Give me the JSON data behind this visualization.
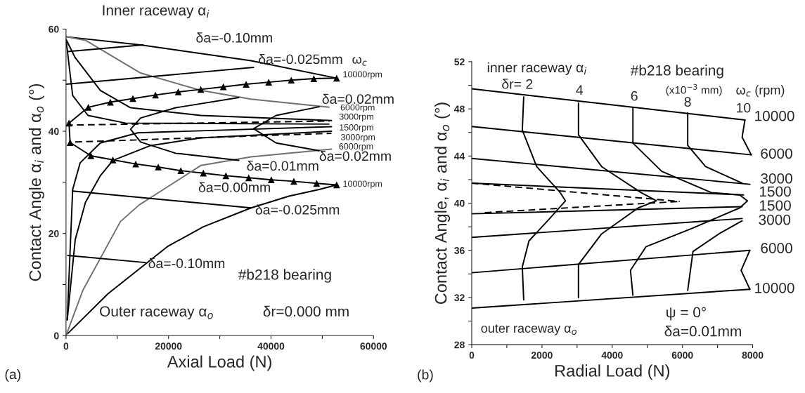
{
  "chart_data": [
    {
      "type": "line",
      "xlabel": "Axial Load (N)",
      "ylabel": "Contact Angle α$_{i}$ and α$_{o}$ (°)",
      "xlim": [
        0,
        60000
      ],
      "xticks": [
        0,
        {
          "value": 10000,
          "label": null
        },
        20000,
        {
          "value": 30000,
          "label": null
        },
        40000,
        {
          "value": 50000,
          "label": null
        },
        60000
      ],
      "ylim": [
        0,
        60
      ],
      "yticks": [
        0,
        {
          "value": 10,
          "label": null
        },
        20,
        {
          "value": 30,
          "label": null
        },
        40,
        {
          "value": 50,
          "label": null
        },
        60
      ],
      "series": [
        {
          "color": "#000000",
          "x": [
            0,
            14550,
            36100,
            52800
          ],
          "values": [
            58.5,
            56.9,
            53.8,
            50.4
          ]
        },
        {
          "color": "#707070",
          "x": [
            0,
            3800,
            14550,
            26300,
            36100,
            51300
          ],
          "values": [
            58.5,
            57.8,
            51.4,
            48.0,
            46.3,
            44.7
          ]
        },
        {
          "color": "#000000",
          "x": [
            0,
            1800,
            6700,
            12600,
            26300,
            51800
          ],
          "values": [
            58.0,
            54.4,
            48.0,
            44.6,
            43.1,
            42.1
          ]
        },
        {
          "color": "#000000",
          "x": [
            0,
            1300,
            4300,
            11600,
            51300
          ],
          "values": [
            58.0,
            47.0,
            43.1,
            41.6,
            41.4
          ]
        },
        {
          "color": "#000000",
          "marker": "triangle",
          "x": [
            52800,
            48350,
            43950,
            39550,
            35150,
            30700,
            26300,
            21900,
            17450,
            13050,
            8650,
            4350,
            580,
            800,
            4850,
            9150,
            13600,
            18000,
            22400,
            26800,
            31200,
            35650,
            40050,
            44450,
            48900,
            52800
          ],
          "values": [
            50.4,
            50.3,
            50.0,
            49.6,
            49.2,
            48.7,
            48.2,
            47.7,
            47.1,
            46.4,
            45.7,
            44.7,
            41.6,
            37.8,
            35.2,
            34.4,
            33.6,
            33.0,
            32.3,
            31.8,
            31.3,
            30.9,
            30.5,
            30.2,
            29.8,
            29.5
          ]
        },
        {
          "color": "#000000",
          "x": [
            330,
            8200,
            19900,
            26800,
            36100,
            43500,
            49400,
            52800
          ],
          "values": [
            0.4,
            8.2,
            17.5,
            21.3,
            25.0,
            27.3,
            28.6,
            29.5
          ]
        },
        {
          "color": "#707070",
          "x": [
            0,
            3300,
            10600,
            14300,
            19000,
            26300,
            36100,
            51800
          ],
          "values": [
            0,
            8.9,
            22.3,
            25.6,
            28.6,
            33.3,
            35.0,
            36.5
          ]
        },
        {
          "color": "#000000",
          "x": [
            240,
            1800,
            3800,
            6700,
            9150,
            16500,
            26300,
            51800
          ],
          "values": [
            3.1,
            18.8,
            26.1,
            31.3,
            34.3,
            37.2,
            38.7,
            40.0
          ]
        },
        {
          "color": "#000000",
          "x": [
            240,
            1300,
            2750,
            6700,
            14000,
            51800
          ],
          "values": [
            3.1,
            28.6,
            33.8,
            37.7,
            39.7,
            40.9
          ]
        },
        {
          "color": "#000000",
          "line_style": "dashed",
          "x": [
            0,
            51400
          ],
          "values": [
            41.2,
            42.0
          ]
        },
        {
          "color": "#000000",
          "line_style": "dashed",
          "x": [
            1800,
            51800
          ],
          "values": [
            37.9,
            39.6
          ]
        },
        {
          "color": "#000000",
          "x": [
            33700,
            21400,
            14550,
            12600,
            14550,
            21400,
            33700
          ],
          "values": [
            46.6,
            44.6,
            42.6,
            40.4,
            37.9,
            35.7,
            34.3
          ]
        },
        {
          "color": "#000000",
          "x": [
            49400,
            41000,
            36600,
            41000,
            49400
          ],
          "values": [
            44.8,
            43.1,
            40.5,
            37.7,
            36.2
          ]
        },
        {
          "color": "#000000",
          "x": [
            0,
            36600
          ],
          "values": [
            49.2,
            52.5
          ]
        },
        {
          "color": "#000000",
          "x": [
            330,
            15000
          ],
          "values": [
            55.6,
            56.9
          ]
        },
        {
          "color": "#000000",
          "x": [
            1300,
            36100
          ],
          "values": [
            28.3,
            25.0
          ]
        },
        {
          "color": "#000000",
          "x": [
            330,
            15500
          ],
          "values": [
            15.7,
            14.3
          ]
        }
      ],
      "annotations": [
        "δa=-0.10mm",
        "δa=-0.025mm",
        "ω$_{c}$",
        "10000rpm",
        "δa=0.02mm",
        "6000rpm",
        "3000rpm",
        "1500rpm",
        "3000rpm",
        "6000rpm",
        "δa=0.02mm",
        "δa=0.01mm",
        "10000rpm",
        "δa=0.00mm",
        "δa=-0.025mm",
        "δa=-0.10mm",
        "Outer raceway α$_{o}$",
        "Inner raceway α$_{i}$",
        "#b218 bearing",
        "δr=0.000 mm",
        "(a)"
      ]
    },
    {
      "type": "line",
      "xlabel": "Radial Load (N)",
      "ylabel": "Contact Angle, α$_{i}$ and α$_{o}$ (°)",
      "xlim": [
        0,
        8000
      ],
      "xticks": [
        0,
        {
          "value": 1000,
          "label": null
        },
        2000,
        {
          "value": 3000,
          "label": null
        },
        4000,
        {
          "value": 5000,
          "label": null
        },
        6000,
        {
          "value": 7000,
          "label": null
        },
        8000
      ],
      "ylim": [
        28,
        52
      ],
      "yticks": [
        28,
        {
          "value": 30,
          "label": null
        },
        32,
        {
          "value": 34,
          "label": null
        },
        36,
        {
          "value": 38,
          "label": null
        },
        40,
        {
          "value": 42,
          "label": null
        },
        44,
        {
          "value": 46,
          "label": null
        },
        48,
        {
          "value": 50,
          "label": null
        },
        52
      ],
      "series": [
        {
          "color": "#000000",
          "x": [
            0,
            7780
          ],
          "values": [
            49.7,
            47.06
          ]
        },
        {
          "color": "#000000",
          "x": [
            0,
            7960
          ],
          "values": [
            46.5,
            44.1
          ]
        },
        {
          "color": "#000000",
          "x": [
            0,
            7920
          ],
          "values": [
            43.8,
            41.6
          ]
        },
        {
          "color": "#000000",
          "x": [
            0,
            7740
          ],
          "values": [
            41.7,
            40.7
          ]
        },
        {
          "color": "#000000",
          "x": [
            0,
            7700
          ],
          "values": [
            39.1,
            39.7
          ]
        },
        {
          "color": "#000000",
          "x": [
            0,
            7700
          ],
          "values": [
            37.1,
            38.7
          ]
        },
        {
          "color": "#000000",
          "x": [
            0,
            7920
          ],
          "values": [
            34.1,
            36.0
          ]
        },
        {
          "color": "#000000",
          "x": [
            0,
            7920
          ],
          "values": [
            31.1,
            32.7
          ]
        },
        {
          "color": "#000000",
          "line_style": "dashed",
          "x": [
            0,
            5920
          ],
          "values": [
            41.7,
            40.15
          ]
        },
        {
          "color": "#000000",
          "line_style": "dashed",
          "x": [
            370,
            5920
          ],
          "values": [
            39.2,
            40.15
          ]
        },
        {
          "color": "#000000",
          "x": [
            1480,
            1440,
            1850,
            2520,
            2670,
            2220,
            1630,
            1440,
            1480
          ],
          "values": [
            49.0,
            46.2,
            43.1,
            40.9,
            40.2,
            38.7,
            36.8,
            34.6,
            31.8
          ]
        },
        {
          "color": "#000000",
          "x": [
            3040,
            3040,
            3700,
            4820,
            5260,
            4740,
            3700,
            3040,
            3040
          ],
          "values": [
            48.5,
            45.8,
            43.1,
            40.9,
            40.2,
            39.6,
            37.4,
            34.8,
            32.0
          ]
        },
        {
          "color": "#000000",
          "x": [
            4590,
            4590,
            5410,
            6820,
            7630,
            7850,
            7630,
            6300,
            4960,
            4520,
            4590
          ],
          "values": [
            48.1,
            45.1,
            42.7,
            40.9,
            40.7,
            40.2,
            39.6,
            37.9,
            36.3,
            34.3,
            32.2
          ]
        },
        {
          "color": "#000000",
          "x": [
            6150,
            6150,
            6660,
            7700
          ],
          "values": [
            47.65,
            44.9,
            43.1,
            41.7
          ]
        },
        {
          "color": "#000000",
          "x": [
            7700,
            7040,
            6300,
            6150
          ],
          "values": [
            38.5,
            37.4,
            35.9,
            32.6
          ]
        },
        {
          "color": "#000000",
          "x": [
            7780,
            7700,
            7960
          ],
          "values": [
            47.06,
            45.6,
            44.1
          ]
        },
        {
          "color": "#000000",
          "x": [
            7920,
            7670,
            7920
          ],
          "values": [
            36.0,
            34.3,
            32.7
          ]
        }
      ],
      "annotations": [
        "inner raceway α$_{i}$",
        "δr= 2",
        "4",
        "6",
        "8",
        "10",
        "(x10$^{−3}$ mm)",
        "ω$_{c}$ (rpm)",
        "10000",
        "6000",
        "3000",
        "1500",
        "1500",
        "3000",
        "6000",
        "10000",
        "outer raceway α$_{o}$",
        "#b218 bearing",
        "ψ = 0°",
        "δa=0.01mm",
        "(b)"
      ]
    }
  ]
}
